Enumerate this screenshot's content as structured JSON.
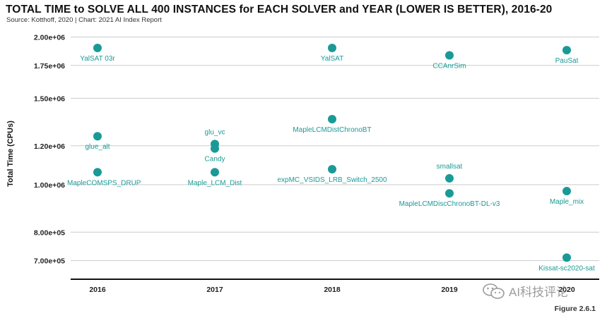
{
  "chart_data": {
    "type": "scatter",
    "title": "TOTAL TIME to SOLVE ALL 400 INSTANCES for EACH SOLVER and YEAR (LOWER IS BETTER), 2016-20",
    "subtitle": "Source: Kotthoff, 2020 | Chart: 2021 AI Index Report",
    "ylabel": "Total Time (CPUs)",
    "yscale": "log",
    "ylim": [
      650000,
      2050000
    ],
    "yticks": [
      {
        "value": 700000,
        "label": "7.00e+05"
      },
      {
        "value": 800000,
        "label": "8.00e+05"
      },
      {
        "value": 1000000,
        "label": "1.00e+06"
      },
      {
        "value": 1200000,
        "label": "1.20e+06"
      },
      {
        "value": 1500000,
        "label": "1.50e+06"
      },
      {
        "value": 1750000,
        "label": "1.75e+06"
      },
      {
        "value": 2000000,
        "label": "2.00e+06"
      }
    ],
    "categories": [
      "2016",
      "2017",
      "2018",
      "2019",
      "2020"
    ],
    "point_color": "#1a9a96",
    "points": [
      {
        "year": "2016",
        "value": 1900000,
        "label": "YalSAT 03r",
        "label_pos": "below"
      },
      {
        "year": "2016",
        "value": 1255000,
        "label": "glue_alt",
        "label_pos": "below"
      },
      {
        "year": "2016",
        "value": 1060000,
        "label": "MapleCOMSPS_DRUP",
        "label_pos": "below"
      },
      {
        "year": "2017",
        "value": 1210000,
        "label": "glu_vc",
        "label_pos": "above"
      },
      {
        "year": "2017",
        "value": 1185000,
        "label": "Candy",
        "label_pos": "below"
      },
      {
        "year": "2017",
        "value": 1060000,
        "label": "Maple_LCM_Dist",
        "label_pos": "below"
      },
      {
        "year": "2018",
        "value": 1900000,
        "label": "YalSAT",
        "label_pos": "below"
      },
      {
        "year": "2018",
        "value": 1360000,
        "label": "MapleLCMDistChronoBT",
        "label_pos": "below"
      },
      {
        "year": "2018",
        "value": 1075000,
        "label": "expMC_VSIDS_LRB_Switch_2500",
        "label_pos": "below"
      },
      {
        "year": "2019",
        "value": 1835000,
        "label": "CCAnrSim",
        "label_pos": "below"
      },
      {
        "year": "2019",
        "value": 1030000,
        "label": "smallsat",
        "label_pos": "above"
      },
      {
        "year": "2019",
        "value": 960000,
        "label": "MapleLCMDiscChronoBT-DL-v3",
        "label_pos": "below"
      },
      {
        "year": "2020",
        "value": 1880000,
        "label": "PauSat",
        "label_pos": "below"
      },
      {
        "year": "2020",
        "value": 970000,
        "label": "Maple_mix",
        "label_pos": "below"
      },
      {
        "year": "2020",
        "value": 710000,
        "label": "Kissat-sc2020-sat",
        "label_pos": "below"
      }
    ]
  },
  "figure_label": "Figure 2.6.1",
  "watermark": {
    "text": "AI科技评论",
    "icon": "wechat-icon"
  }
}
